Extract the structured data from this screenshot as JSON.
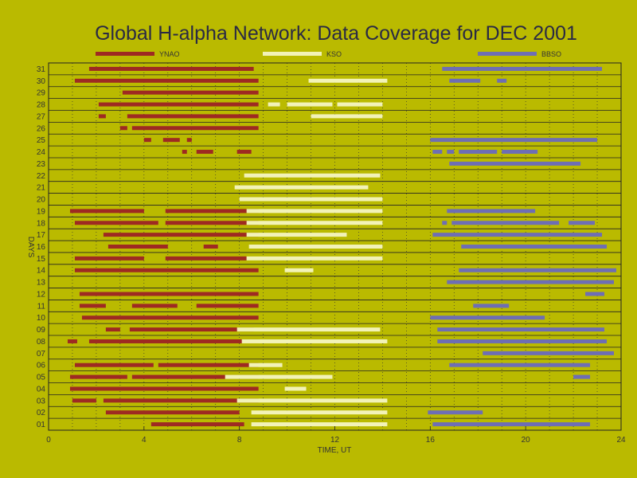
{
  "chart_data": {
    "type": "timeline",
    "title": "Global H-alpha Network: Data Coverage for DEC 2001",
    "xlabel": "TIME, UT",
    "ylabel": "DAYS",
    "xlim": [
      0,
      24
    ],
    "x_ticks": [
      0,
      4,
      8,
      12,
      16,
      20,
      24
    ],
    "days": [
      "01",
      "02",
      "03",
      "04",
      "05",
      "06",
      "07",
      "08",
      "09",
      "10",
      "11",
      "12",
      "13",
      "14",
      "15",
      "16",
      "17",
      "18",
      "19",
      "20",
      "21",
      "22",
      "23",
      "24",
      "25",
      "26",
      "27",
      "28",
      "29",
      "30",
      "31"
    ],
    "grid": true,
    "legend_position": "top",
    "series": [
      {
        "name": "YNAO",
        "color": "#9E2A22",
        "coverage": {
          "01": [
            [
              4.3,
              8.2
            ]
          ],
          "02": [
            [
              2.4,
              8.0
            ]
          ],
          "03": [
            [
              1.0,
              2.0
            ],
            [
              2.3,
              8.8
            ]
          ],
          "04": [
            [
              0.9,
              8.8
            ]
          ],
          "05": [
            [
              0.9,
              3.3
            ],
            [
              3.5,
              8.8
            ]
          ],
          "06": [
            [
              1.1,
              4.4
            ],
            [
              4.6,
              8.8
            ]
          ],
          "08": [
            [
              0.8,
              1.2
            ],
            [
              1.7,
              8.8
            ]
          ],
          "09": [
            [
              2.4,
              3.0
            ],
            [
              3.4,
              8.6
            ]
          ],
          "10": [
            [
              1.4,
              8.8
            ]
          ],
          "11": [
            [
              1.3,
              2.4
            ],
            [
              3.5,
              5.4
            ],
            [
              6.2,
              8.8
            ]
          ],
          "12": [
            [
              1.3,
              8.8
            ]
          ],
          "14": [
            [
              1.1,
              8.8
            ]
          ],
          "15": [
            [
              1.1,
              4.0
            ],
            [
              4.9,
              8.3
            ]
          ],
          "16": [
            [
              2.5,
              5.0
            ],
            [
              6.5,
              7.1
            ]
          ],
          "17": [
            [
              2.3,
              8.8
            ]
          ],
          "18": [
            [
              1.1,
              4.6
            ],
            [
              4.9,
              8.8
            ]
          ],
          "19": [
            [
              0.9,
              4.0
            ],
            [
              4.9,
              8.8
            ]
          ],
          "24": [
            [
              5.6,
              5.8
            ],
            [
              6.2,
              6.9
            ],
            [
              7.9,
              8.5
            ]
          ],
          "25": [
            [
              4.0,
              4.3
            ],
            [
              4.8,
              5.5
            ],
            [
              5.8,
              6.0
            ]
          ],
          "26": [
            [
              3.0,
              3.3
            ],
            [
              3.5,
              8.8
            ]
          ],
          "27": [
            [
              2.1,
              2.4
            ],
            [
              3.3,
              8.8
            ]
          ],
          "28": [
            [
              2.1,
              8.8
            ]
          ],
          "29": [
            [
              3.1,
              8.8
            ]
          ],
          "30": [
            [
              1.1,
              8.8
            ]
          ],
          "31": [
            [
              1.7,
              8.6
            ]
          ]
        }
      },
      {
        "name": "KSO",
        "color": "#F2F2B8",
        "coverage": {
          "01": [
            [
              8.5,
              14.2
            ]
          ],
          "02": [
            [
              8.5,
              14.2
            ]
          ],
          "03": [
            [
              7.9,
              14.2
            ]
          ],
          "04": [
            [
              9.9,
              10.8
            ]
          ],
          "05": [
            [
              7.4,
              11.9
            ]
          ],
          "06": [
            [
              8.4,
              9.8
            ]
          ],
          "08": [
            [
              8.1,
              14.2
            ]
          ],
          "09": [
            [
              7.9,
              13.9
            ]
          ],
          "14": [
            [
              9.9,
              11.1
            ]
          ],
          "15": [
            [
              8.3,
              14.0
            ]
          ],
          "16": [
            [
              8.4,
              14.0
            ]
          ],
          "17": [
            [
              8.3,
              12.5
            ]
          ],
          "18": [
            [
              8.3,
              14.0
            ]
          ],
          "19": [
            [
              8.3,
              14.0
            ]
          ],
          "20": [
            [
              8.0,
              14.0
            ]
          ],
          "21": [
            [
              7.8,
              13.4
            ]
          ],
          "22": [
            [
              8.2,
              13.9
            ]
          ],
          "27": [
            [
              11.0,
              14.0
            ]
          ],
          "28": [
            [
              9.2,
              9.7
            ],
            [
              10.0,
              11.9
            ],
            [
              12.1,
              14.0
            ]
          ],
          "30": [
            [
              10.9,
              14.2
            ]
          ]
        }
      },
      {
        "name": "BBSO",
        "color": "#6E6EB4",
        "coverage": {
          "01": [
            [
              16.1,
              22.7
            ]
          ],
          "02": [
            [
              15.9,
              18.2
            ]
          ],
          "05": [
            [
              22.0,
              22.7
            ]
          ],
          "06": [
            [
              16.8,
              22.7
            ]
          ],
          "07": [
            [
              18.2,
              23.7
            ]
          ],
          "08": [
            [
              16.3,
              23.4
            ]
          ],
          "09": [
            [
              16.3,
              23.3
            ]
          ],
          "10": [
            [
              16.0,
              20.8
            ]
          ],
          "11": [
            [
              17.8,
              19.3
            ]
          ],
          "12": [
            [
              22.5,
              23.3
            ]
          ],
          "13": [
            [
              16.7,
              23.7
            ]
          ],
          "14": [
            [
              17.2,
              23.8
            ]
          ],
          "16": [
            [
              17.3,
              23.4
            ]
          ],
          "17": [
            [
              16.1,
              23.2
            ]
          ],
          "18": [
            [
              16.5,
              16.7
            ],
            [
              16.9,
              21.4
            ],
            [
              21.8,
              22.9
            ]
          ],
          "19": [
            [
              16.7,
              20.4
            ]
          ],
          "23": [
            [
              16.8,
              22.3
            ]
          ],
          "24": [
            [
              16.1,
              16.5
            ],
            [
              16.7,
              17.0
            ],
            [
              17.2,
              18.8
            ],
            [
              19.0,
              20.5
            ]
          ],
          "25": [
            [
              16.0,
              23.0
            ]
          ],
          "30": [
            [
              16.8,
              18.1
            ],
            [
              18.8,
              19.2
            ]
          ],
          "31": [
            [
              16.5,
              23.2
            ]
          ]
        }
      }
    ]
  }
}
